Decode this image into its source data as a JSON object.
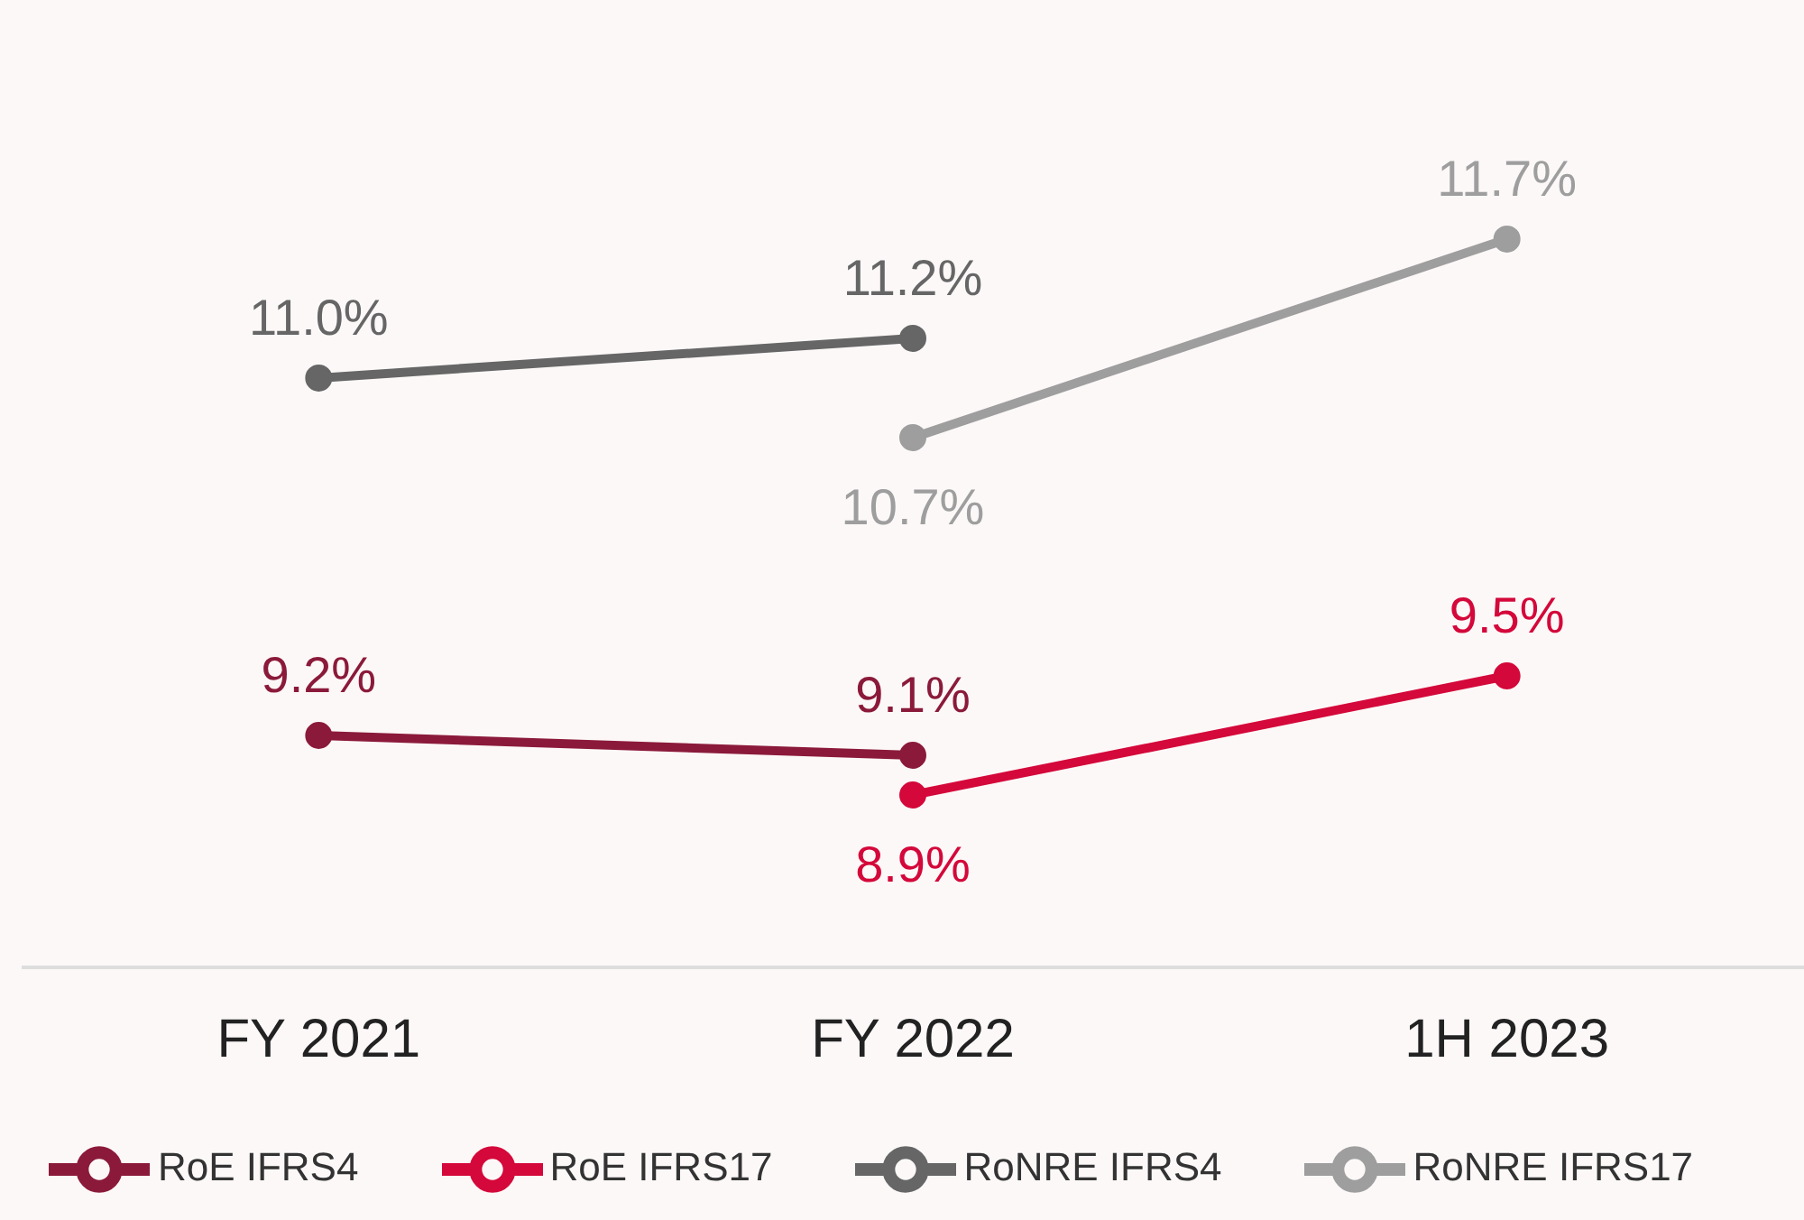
{
  "chart_data": {
    "type": "line",
    "categories": [
      "FY 2021",
      "FY 2022",
      "1H 2023"
    ],
    "tick_labels": "x",
    "data_labels": true,
    "marker": "circle",
    "line_style": "solid",
    "legend": "bottom",
    "series": [
      {
        "name": "RoE IFRS4",
        "color": "#8b1a3a",
        "values": [
          9.2,
          9.1,
          null
        ],
        "value_labels": [
          "9.2%",
          "9.1%",
          null
        ]
      },
      {
        "name": "RoE IFRS17",
        "color": "#d4083a",
        "values": [
          null,
          8.9,
          9.5
        ],
        "value_labels": [
          null,
          "8.9%",
          "9.5%"
        ]
      },
      {
        "name": "RoNRE IFRS4",
        "color": "#666666",
        "values": [
          11.0,
          11.2,
          null
        ],
        "value_labels": [
          "11.0%",
          "11.2%",
          null
        ]
      },
      {
        "name": "RoNRE IFRS17",
        "color": "#9e9e9e",
        "values": [
          null,
          10.7,
          11.7
        ],
        "value_labels": [
          null,
          "10.7%",
          "11.7%"
        ]
      }
    ]
  }
}
